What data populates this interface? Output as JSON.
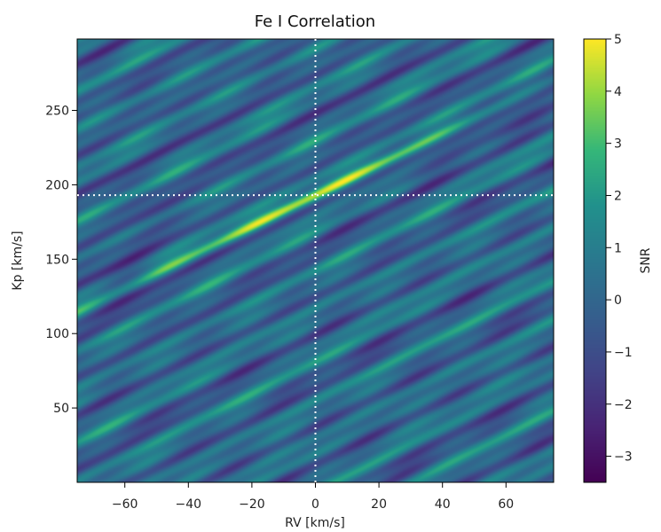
{
  "chart_data": {
    "type": "heatmap",
    "title": "Fe I Correlation",
    "xlabel": "RV [km/s]",
    "ylabel": "Kp [km/s]",
    "xlim": [
      -75,
      75
    ],
    "ylim": [
      0,
      298
    ],
    "xticks": [
      -60,
      -40,
      -20,
      0,
      20,
      40,
      60
    ],
    "xtick_labels": [
      "−60",
      "−40",
      "−20",
      "0",
      "20",
      "40",
      "60"
    ],
    "yticks": [
      50,
      100,
      150,
      200,
      250
    ],
    "ytick_labels": [
      "50",
      "100",
      "150",
      "200",
      "250"
    ],
    "colorbar": {
      "label": "SNR",
      "range": [
        -3.5,
        5
      ],
      "ticks": [
        5,
        4,
        3,
        2,
        1,
        0,
        -1,
        -2,
        -3
      ],
      "tick_labels": [
        "5",
        "4",
        "3",
        "2",
        "1",
        "0",
        "−1",
        "−2",
        "−3"
      ],
      "colormap": "viridis"
    },
    "reference_lines": {
      "rv": 0,
      "kp": 193,
      "style": "dotted",
      "color": "#ffffff"
    },
    "peak": {
      "rv": -2,
      "kp": 193,
      "snr": 5
    }
  }
}
